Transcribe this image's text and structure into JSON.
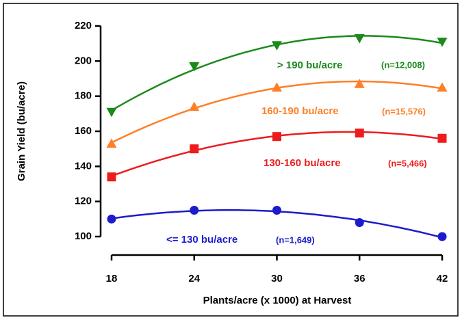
{
  "chart_data": {
    "type": "line",
    "x_label": "Plants/acre (x 1000) at Harvest",
    "y_label": "Grain Yield (bu/acre)",
    "x": [
      18,
      24,
      30,
      36,
      42
    ],
    "xlim": [
      18,
      42
    ],
    "xticks": [
      18,
      24,
      30,
      36,
      42
    ],
    "ylim": [
      100,
      220
    ],
    "yticks": [
      100,
      120,
      140,
      160,
      180,
      200,
      220
    ],
    "series": [
      {
        "name": "> 190 bu/acre",
        "annotation": "(n=12,008)",
        "color": "#1b8a1b",
        "marker": "triangle-down",
        "values": [
          171,
          197,
          209,
          213,
          211
        ]
      },
      {
        "name": "160-190 bu/acre",
        "annotation": "(n=15,576)",
        "color": "#ff7f27",
        "marker": "triangle-up",
        "values": [
          153,
          174,
          185,
          187,
          185
        ]
      },
      {
        "name": "130-160 bu/acre",
        "annotation": "(n=5,466)",
        "color": "#ee1c1c",
        "marker": "square",
        "values": [
          134,
          150,
          157,
          159,
          156
        ]
      },
      {
        "name": "<= 130 bu/acre",
        "annotation": "(n=1,649)",
        "color": "#1c1ccc",
        "marker": "circle",
        "values": [
          110,
          115,
          115,
          108,
          100
        ]
      }
    ]
  }
}
